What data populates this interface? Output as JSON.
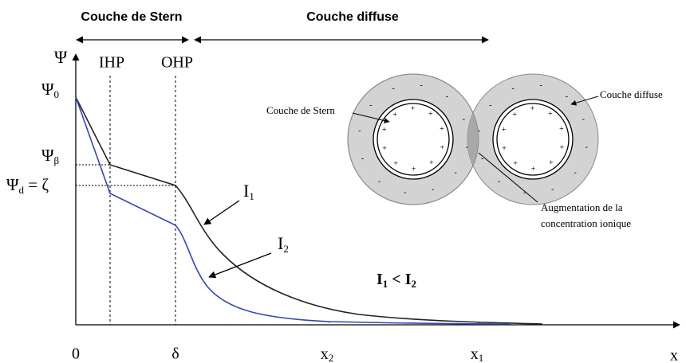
{
  "header": {
    "stern": "Couche de Stern",
    "diffuse": "Couche diffuse"
  },
  "axes": {
    "y": "Ψ",
    "x": "x"
  },
  "planes": {
    "ihp": "IHP",
    "ohp": "OHP"
  },
  "y_labels": [
    {
      "symbol": "Ψ",
      "sub": "0"
    },
    {
      "symbol": "Ψ",
      "sub": "β"
    },
    {
      "symbol": "Ψ",
      "sub": "d",
      "suffix": " = ζ"
    }
  ],
  "x_labels": [
    {
      "symbol": "0"
    },
    {
      "symbol": "δ"
    },
    {
      "symbol": "x",
      "sub": "2"
    },
    {
      "symbol": "x",
      "sub": "1"
    }
  ],
  "curves": [
    {
      "symbol": "I",
      "sub": "1"
    },
    {
      "symbol": "I",
      "sub": "2"
    }
  ],
  "relation": {
    "left": "I",
    "left_sub": "1",
    "op": " < ",
    "right": "I",
    "right_sub": "2"
  },
  "inset": {
    "stern_label": "Couche de Stern",
    "diffuse_label": "Couche diffuse",
    "overlap_label": [
      "Augmentation de la",
      "concentration ionique"
    ],
    "charges": {
      "plus": "+",
      "minus": "-"
    }
  }
}
